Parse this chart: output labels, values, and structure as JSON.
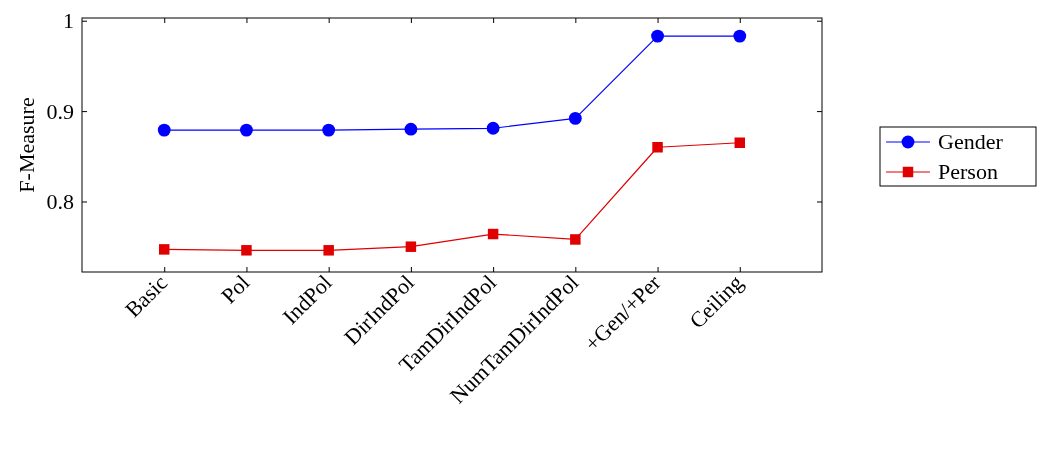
{
  "chart_data": {
    "type": "line",
    "ylabel": "F-Measure",
    "categories": [
      "Basic",
      "Pol",
      "IndPol",
      "DirIndPol",
      "TamDirIndPol",
      "NumTamDirIndPol",
      "+Gen/+Per",
      "Ceiling"
    ],
    "series": [
      {
        "name": "Gender",
        "color": "#0000ff",
        "marker": "circle",
        "values": [
          0.879,
          0.879,
          0.879,
          0.88,
          0.881,
          0.892,
          0.983,
          0.983
        ]
      },
      {
        "name": "Person",
        "color": "#e00000",
        "marker": "square",
        "values": [
          0.747,
          0.746,
          0.746,
          0.75,
          0.764,
          0.758,
          0.86,
          0.865
        ]
      }
    ],
    "ylim": [
      0.722,
      1.003
    ],
    "yticks": [
      0.8,
      0.9,
      {
        "value": 1,
        "label": "1"
      }
    ],
    "grid": false,
    "legend": "right",
    "line_style": "solid"
  }
}
